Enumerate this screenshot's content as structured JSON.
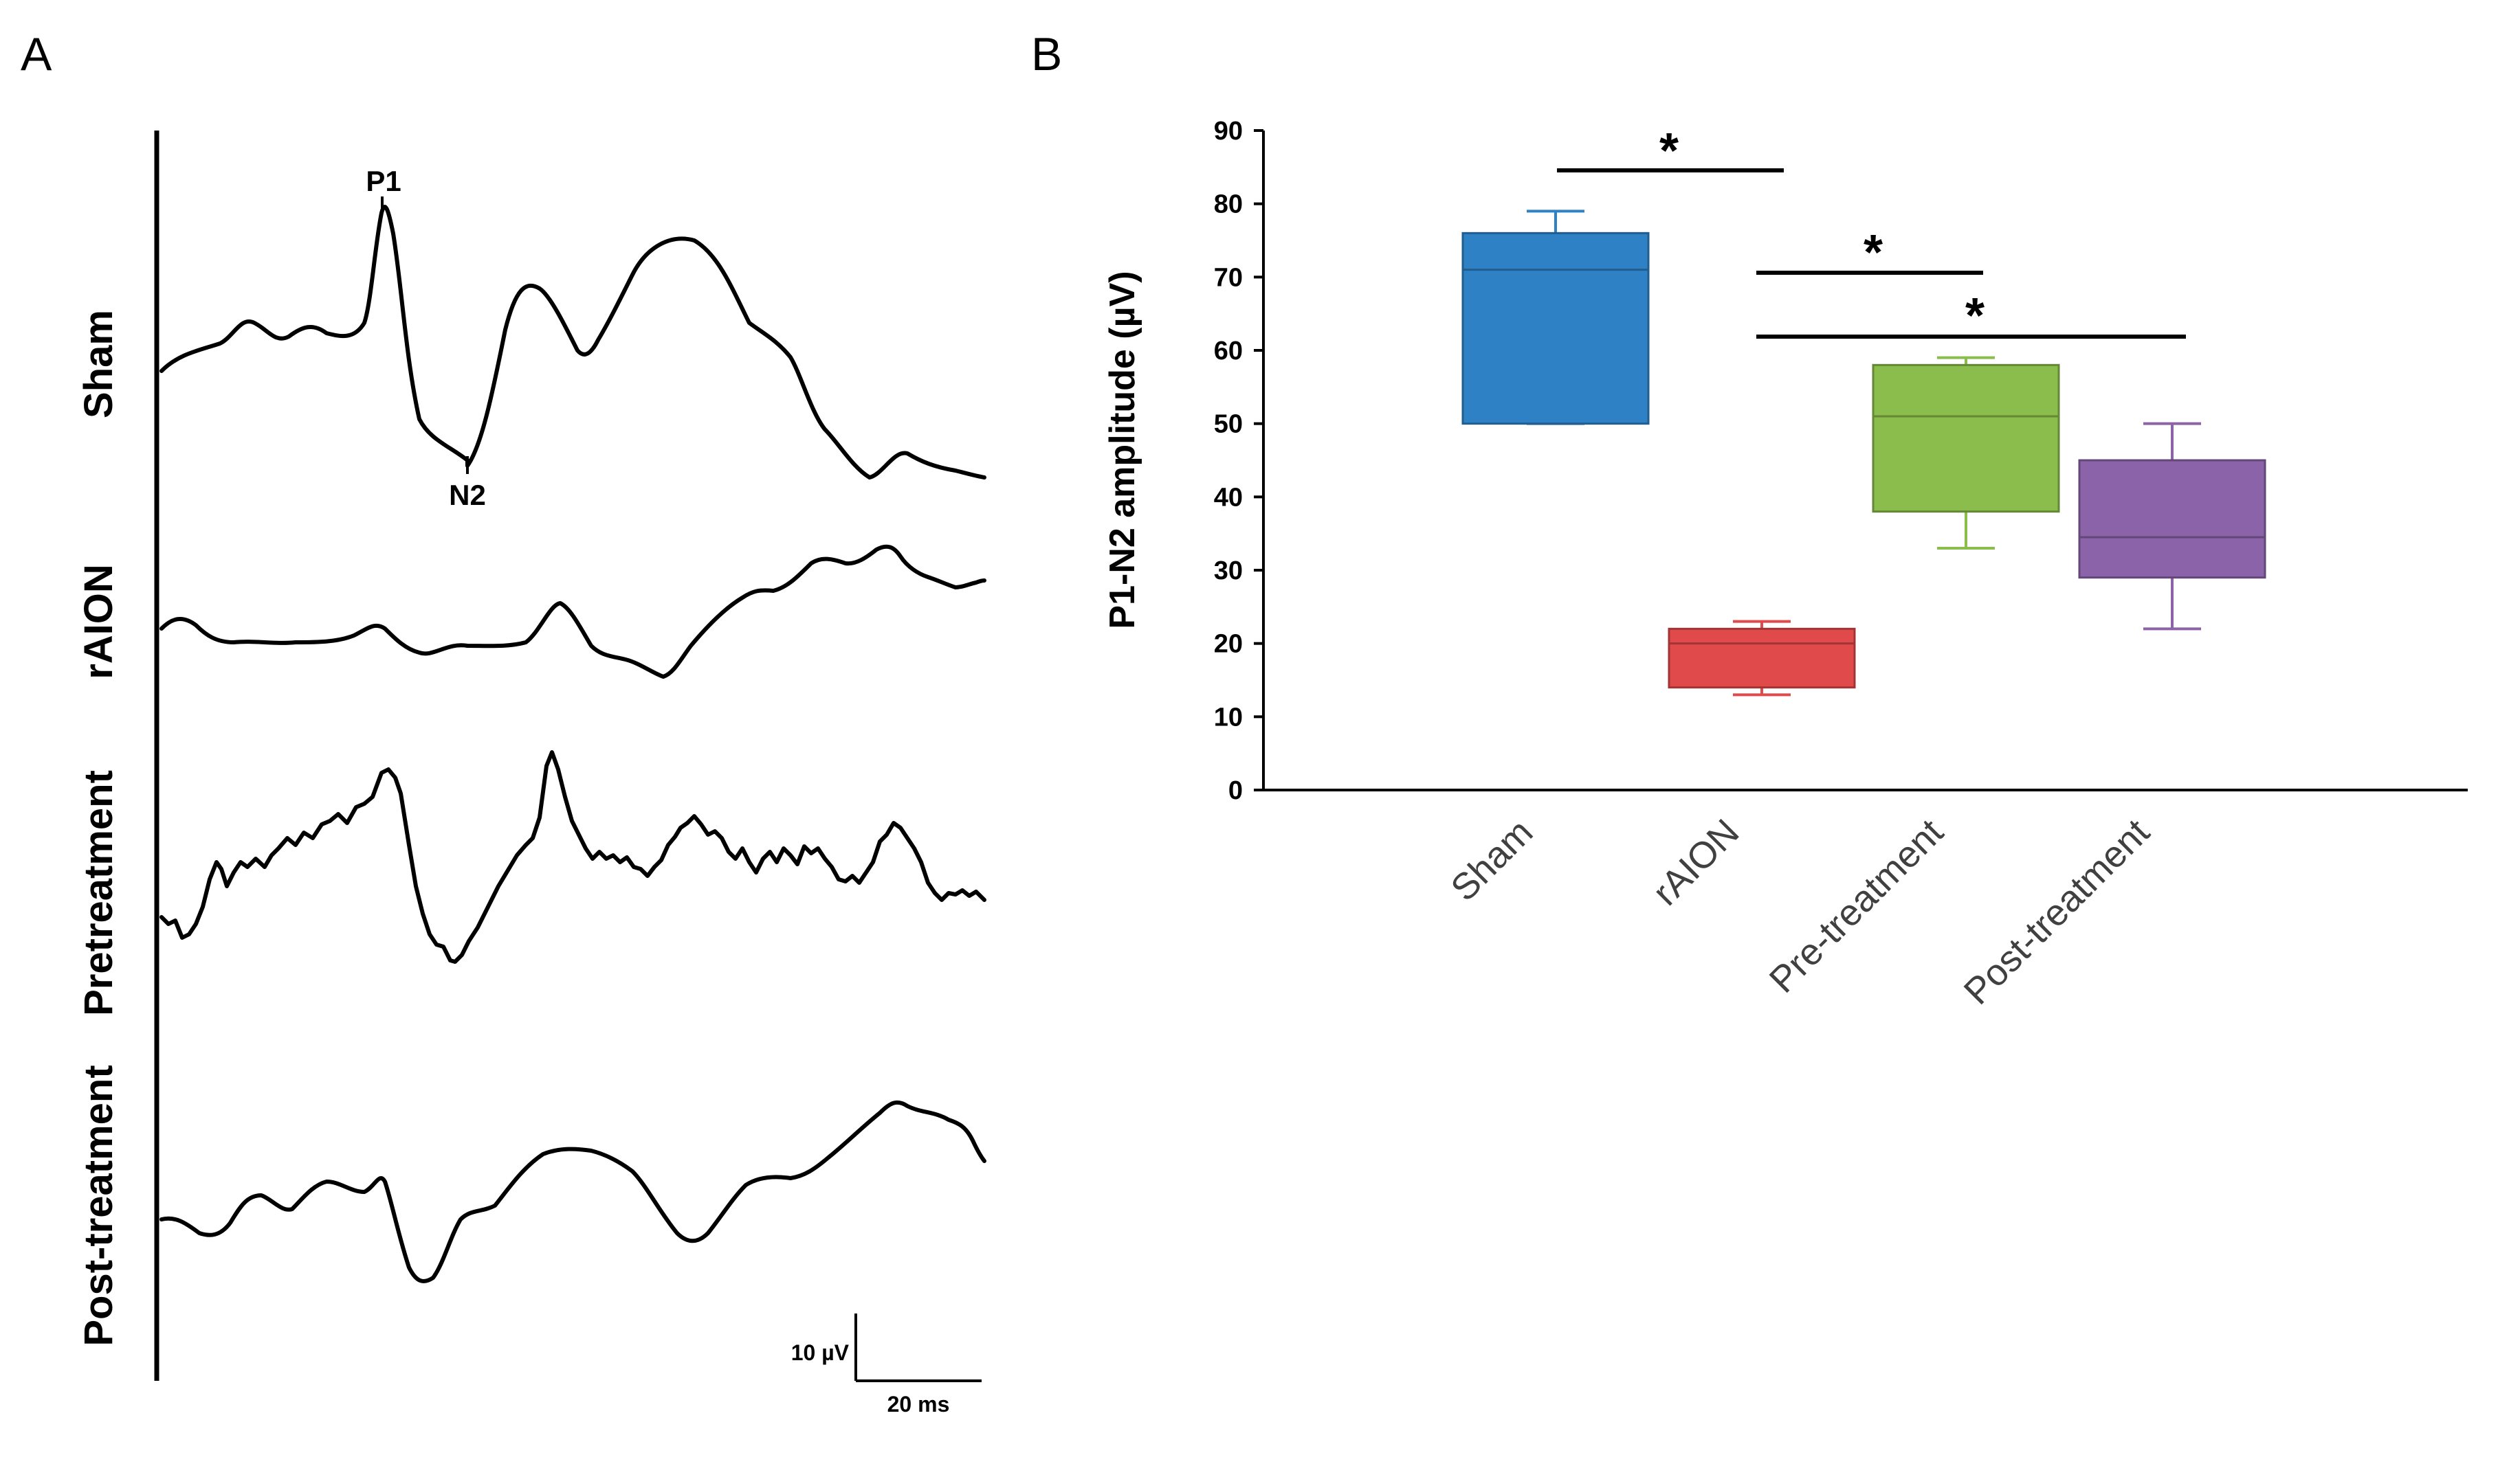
{
  "panel_a": {
    "letter": "A",
    "traces": [
      {
        "label": "Sham"
      },
      {
        "label": "rAION"
      },
      {
        "label": "Pretreatment"
      },
      {
        "label": "Post-treatment"
      }
    ],
    "peak_labels": {
      "p1": "P1",
      "n2": "N2"
    },
    "scalebar": {
      "amplitude": "10 µV",
      "time": "20 ms"
    }
  },
  "panel_b": {
    "letter": "B"
  },
  "chart_data": {
    "type": "box",
    "ylabel": "P1-N2 amplitude (µV)",
    "ylim": [
      0,
      90
    ],
    "yticks": [
      0,
      10,
      20,
      30,
      40,
      50,
      60,
      70,
      80,
      90
    ],
    "categories": [
      "Sham",
      "rAION",
      "Pre-treatment",
      "Post-treatment"
    ],
    "boxes": [
      {
        "category": "Sham",
        "min": 50,
        "q1": 50,
        "median": 71,
        "q3": 76,
        "max": 79,
        "color": "#2f81c5"
      },
      {
        "category": "rAION",
        "min": 13,
        "q1": 14,
        "median": 20,
        "q3": 22,
        "max": 23,
        "color": "#e04a4a"
      },
      {
        "category": "Pre-treatment",
        "min": 33,
        "q1": 38,
        "median": 51,
        "q3": 58,
        "max": 59,
        "color": "#8bbd4c"
      },
      {
        "category": "Post-treatment",
        "min": 22,
        "q1": 29,
        "median": 34.5,
        "q3": 45,
        "max": 50,
        "color": "#8b63a8"
      }
    ],
    "significance": [
      {
        "from": "Sham",
        "to": "rAION",
        "label": "*"
      },
      {
        "from": "rAION",
        "to": "Pre-treatment",
        "label": "*"
      },
      {
        "from": "rAION",
        "to": "Post-treatment",
        "label": "*"
      }
    ]
  }
}
